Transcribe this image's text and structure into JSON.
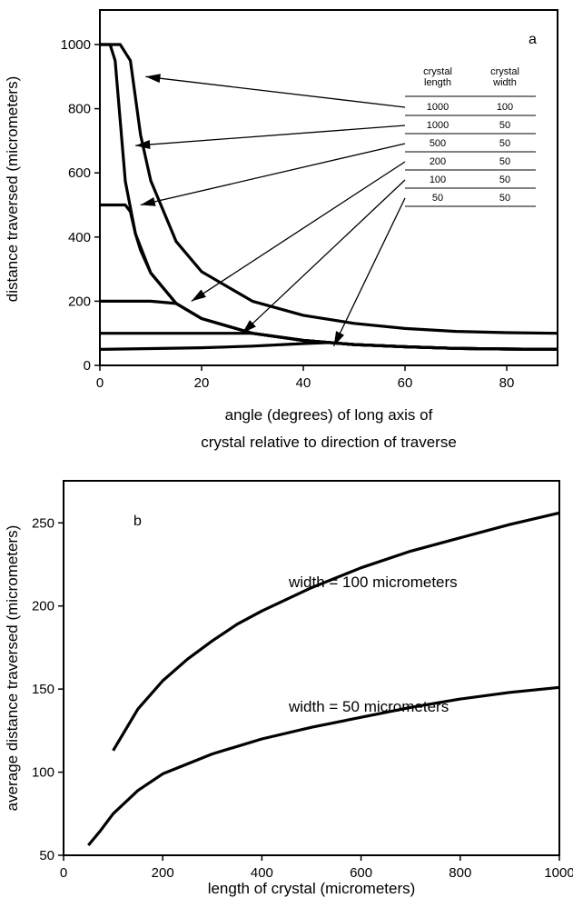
{
  "chart_data": [
    {
      "type": "line",
      "panel_label": "a",
      "xlabel_lines": [
        "angle (degrees) of long axis of",
        "crystal relative to direction of traverse"
      ],
      "ylabel": "distance traversed (micrometers)",
      "xlim": [
        0,
        90
      ],
      "ylim": [
        0,
        1000
      ],
      "xticks": [
        0,
        20,
        40,
        60,
        80
      ],
      "yticks": [
        0,
        200,
        400,
        600,
        800,
        1000
      ],
      "grid": false,
      "legend_table": {
        "headers": [
          [
            "crystal",
            "length"
          ],
          [
            "crystal",
            "width"
          ]
        ],
        "rows": [
          [
            "1000",
            "100"
          ],
          [
            "1000",
            "50"
          ],
          [
            "500",
            "50"
          ],
          [
            "200",
            "50"
          ],
          [
            "100",
            "50"
          ],
          [
            "50",
            "50"
          ]
        ]
      },
      "series": [
        {
          "length": 1000,
          "width": 100,
          "x": [
            0,
            2,
            4,
            6,
            8,
            10,
            15,
            20,
            30,
            40,
            50,
            60,
            70,
            80,
            90
          ],
          "y": [
            1000,
            1000,
            1000,
            950,
            718,
            576,
            386,
            292,
            200,
            156,
            131,
            115,
            106,
            102,
            100
          ]
        },
        {
          "length": 1000,
          "width": 50,
          "x": [
            0,
            2,
            3,
            5,
            7,
            10,
            15,
            20,
            30,
            40,
            50,
            60,
            70,
            80,
            90
          ],
          "y": [
            1000,
            1000,
            950,
            574,
            410,
            288,
            193,
            146,
            100,
            78,
            65,
            58,
            53,
            51,
            50
          ]
        },
        {
          "length": 500,
          "width": 50,
          "x": [
            0,
            2,
            4,
            5,
            6,
            7,
            8,
            10,
            15,
            20,
            30,
            40,
            50,
            60,
            70,
            80,
            90
          ],
          "y": [
            500,
            500,
            500,
            500,
            479,
            410,
            359,
            288,
            193,
            146,
            100,
            78,
            65,
            58,
            53,
            51,
            50
          ]
        },
        {
          "length": 200,
          "width": 50,
          "x": [
            0,
            5,
            10,
            15,
            20,
            30,
            40,
            50,
            60,
            70,
            80,
            90
          ],
          "y": [
            200,
            200,
            200,
            193,
            146,
            100,
            78,
            65,
            58,
            53,
            51,
            50
          ]
        },
        {
          "length": 100,
          "width": 50,
          "x": [
            0,
            10,
            20,
            30,
            40,
            50,
            60,
            70,
            80,
            90
          ],
          "y": [
            100,
            100,
            100,
            100,
            78,
            65,
            58,
            53,
            51,
            50
          ]
        },
        {
          "length": 50,
          "width": 50,
          "x": [
            0,
            20,
            30,
            40,
            45,
            50,
            60,
            70,
            80,
            90
          ],
          "y": [
            50,
            55,
            60,
            68,
            71,
            65,
            58,
            53,
            51,
            50
          ]
        }
      ],
      "arrows": [
        {
          "row": 0,
          "target": [
            9,
            900
          ]
        },
        {
          "row": 1,
          "target": [
            7,
            685
          ]
        },
        {
          "row": 2,
          "target": [
            8,
            500
          ]
        },
        {
          "row": 3,
          "target": [
            18,
            200
          ]
        },
        {
          "row": 4,
          "target": [
            28,
            100
          ]
        },
        {
          "row": 5,
          "target": [
            46,
            60
          ]
        }
      ]
    },
    {
      "type": "line",
      "panel_label": "b",
      "xlabel": "length of crystal (micrometers)",
      "ylabel": "average distance traversed (micrometers)",
      "xlim": [
        0,
        1000
      ],
      "ylim": [
        50,
        260
      ],
      "xticks": [
        0,
        200,
        400,
        600,
        800,
        1000
      ],
      "yticks": [
        50,
        100,
        150,
        200,
        250
      ],
      "grid": false,
      "series": [
        {
          "name": "width = 100 micrometers",
          "x": [
            100,
            150,
            200,
            250,
            300,
            350,
            400,
            500,
            600,
            700,
            800,
            900,
            1000
          ],
          "y": [
            113,
            138,
            155,
            168,
            179,
            189,
            197,
            211,
            223,
            233,
            241,
            249,
            256
          ]
        },
        {
          "name": "width = 50 micrometers",
          "x": [
            50,
            75,
            100,
            150,
            200,
            300,
            400,
            500,
            600,
            700,
            800,
            900,
            1000
          ],
          "y": [
            56,
            65,
            75,
            89,
            99,
            111,
            120,
            127,
            133,
            139,
            144,
            148,
            151
          ]
        }
      ]
    }
  ]
}
